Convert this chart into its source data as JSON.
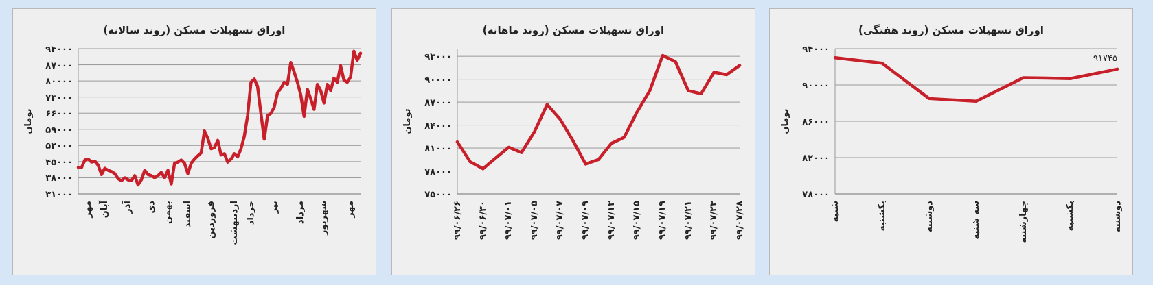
{
  "chart_data": [
    {
      "type": "line",
      "title": "اوراق تسهیلات مسکن (روند سالانه)",
      "ylabel": "تومان",
      "grid": "y",
      "ylim": [
        31000,
        94000
      ],
      "yticks": [
        {
          "value": 31000,
          "label": "۳۱۰۰۰"
        },
        {
          "value": 38000,
          "label": "۳۸۰۰۰"
        },
        {
          "value": 45000,
          "label": "۴۵۰۰۰"
        },
        {
          "value": 52000,
          "label": "۵۲۰۰۰"
        },
        {
          "value": 59000,
          "label": "۵۹۰۰۰"
        },
        {
          "value": 66000,
          "label": "۶۶۰۰۰"
        },
        {
          "value": 73000,
          "label": "۷۳۰۰۰"
        },
        {
          "value": 80000,
          "label": "۸۰۰۰۰"
        },
        {
          "value": 87000,
          "label": "۸۷۰۰۰"
        },
        {
          "value": 94000,
          "label": "۹۴۰۰۰"
        }
      ],
      "categories": [
        null,
        null,
        null,
        "مهر",
        null,
        null,
        null,
        null,
        "آبان",
        null,
        null,
        null,
        null,
        null,
        null,
        "آذر",
        null,
        null,
        null,
        null,
        null,
        null,
        "دی",
        null,
        null,
        null,
        null,
        "بهمن",
        null,
        null,
        null,
        null,
        null,
        "اسفند",
        null,
        null,
        null,
        null,
        null,
        null,
        "فروردین",
        null,
        null,
        null,
        null,
        null,
        null,
        "اردیبهشت",
        null,
        null,
        null,
        null,
        "خرداد",
        null,
        null,
        null,
        null,
        null,
        null,
        "تیر",
        null,
        null,
        null,
        null,
        null,
        null,
        null,
        "مرداد",
        null,
        null,
        null,
        null,
        null,
        null,
        "شهریور",
        null,
        null,
        null,
        null,
        null,
        null,
        null,
        "مهر",
        null,
        null,
        null
      ],
      "series": [
        {
          "color": "#c8202a",
          "values": [
            42500,
            42500,
            45700,
            46100,
            44800,
            45200,
            43400,
            39400,
            42100,
            41200,
            40700,
            39800,
            37600,
            36700,
            38000,
            37100,
            36700,
            38900,
            34900,
            37100,
            41200,
            39400,
            38900,
            38000,
            38900,
            40300,
            38000,
            41200,
            35300,
            44300,
            44800,
            45700,
            44300,
            39800,
            44300,
            46100,
            47500,
            48800,
            58300,
            55100,
            50600,
            51100,
            54200,
            47900,
            48400,
            44800,
            46100,
            48400,
            47100,
            50600,
            56000,
            65000,
            79400,
            80800,
            77600,
            65900,
            54700,
            65000,
            65900,
            68600,
            74900,
            76700,
            79400,
            78500,
            88000,
            83900,
            79400,
            74000,
            64600,
            76300,
            72200,
            67700,
            78500,
            75800,
            70400,
            78500,
            75800,
            81200,
            79400,
            86600,
            80300,
            79400,
            81700,
            92900,
            88900,
            92000
          ]
        }
      ]
    },
    {
      "type": "line",
      "title": "اوراق تسهیلات مسکن (روند ماهانه)",
      "ylabel": "تومان",
      "grid": "y",
      "ylim": [
        75000,
        94000
      ],
      "yticks": [
        {
          "value": 75000,
          "label": "۷۵۰۰۰"
        },
        {
          "value": 78000,
          "label": "۷۸۰۰۰"
        },
        {
          "value": 81000,
          "label": "۸۱۰۰۰"
        },
        {
          "value": 84000,
          "label": "۸۴۰۰۰"
        },
        {
          "value": 87000,
          "label": "۸۷۰۰۰"
        },
        {
          "value": 90000,
          "label": "۹۰۰۰۰"
        },
        {
          "value": 93000,
          "label": "۹۳۰۰۰"
        }
      ],
      "categories": [
        "۹۹/۰۶/۲۶",
        null,
        "۹۹/۰۶/۳۰",
        null,
        "۹۹/۰۷/۰۱",
        null,
        "۹۹/۰۷/۰۵",
        null,
        "۹۹/۰۷/۰۷",
        null,
        "۹۹/۰۷/۰۹",
        null,
        "۹۹/۰۷/۱۳",
        null,
        "۹۹/۰۷/۱۵",
        null,
        "۹۹/۰۷/۱۹",
        null,
        "۹۹/۰۷/۲۱",
        null,
        "۹۹/۰۷/۲۳",
        null,
        "۹۹/۰۷/۲۸"
      ],
      "series": [
        {
          "color": "#c8202a",
          "values": [
            81800,
            79200,
            78300,
            79700,
            81100,
            80400,
            83100,
            86700,
            84800,
            82000,
            78900,
            79500,
            81600,
            82400,
            85700,
            88500,
            93100,
            92300,
            88500,
            88100,
            90900,
            90600,
            91800
          ]
        }
      ]
    },
    {
      "type": "line",
      "title": "اوراق تسهیلات مسکن (روند هفتگی)",
      "ylabel": "تومان",
      "grid": "y",
      "ylim": [
        78000,
        94000
      ],
      "yticks": [
        {
          "value": 78000,
          "label": "۷۸۰۰۰"
        },
        {
          "value": 82000,
          "label": "۸۲۰۰۰"
        },
        {
          "value": 86000,
          "label": "۸۶۰۰۰"
        },
        {
          "value": 90000,
          "label": "۹۰۰۰۰"
        },
        {
          "value": 94000,
          "label": "۹۴۰۰۰"
        }
      ],
      "categories": [
        "شنبه",
        "یکشنبه",
        "دوشنبه",
        "سه شنبه",
        "چهارشنبه",
        "یکشنبه",
        "دوشنبه"
      ],
      "series": [
        {
          "color": "#c8202a",
          "values": [
            93000,
            92400,
            88500,
            88200,
            90800,
            90700,
            91745
          ],
          "value_labels": [
            null,
            null,
            null,
            null,
            null,
            null,
            "۹۱۷۴۵"
          ]
        }
      ]
    }
  ]
}
